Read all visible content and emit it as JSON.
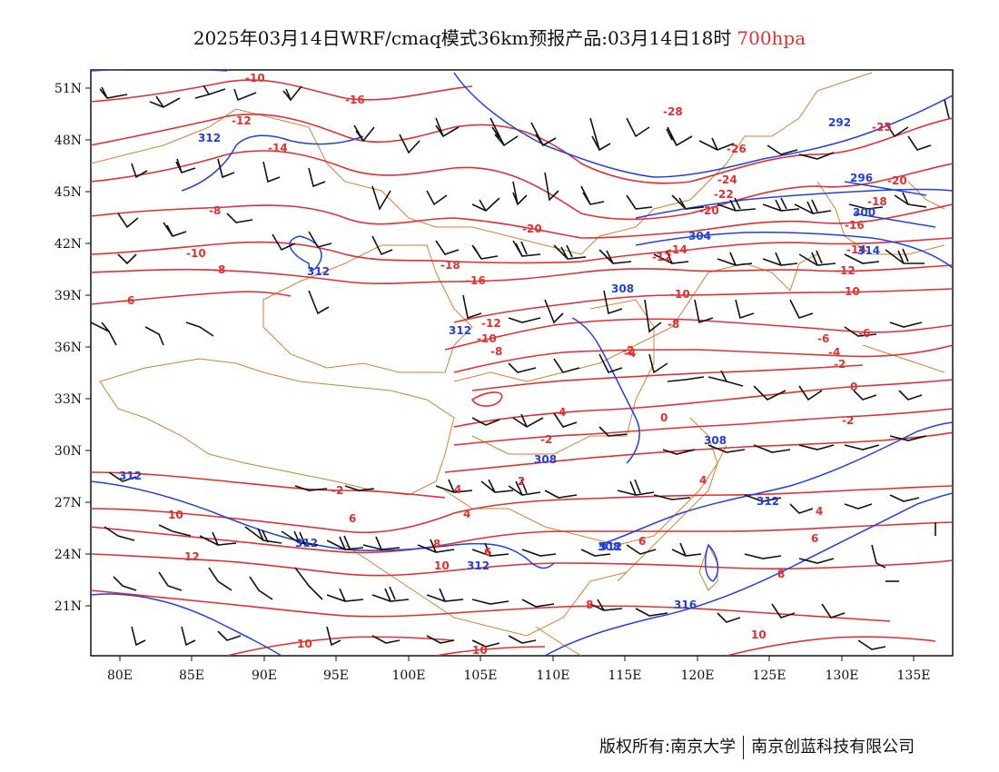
{
  "title": {
    "main": "2025年03月14日WRF/cmaq模式36km预报产品:03月14日18时",
    "level": "700hpa"
  },
  "axes": {
    "lat_labels": [
      "51N",
      "48N",
      "45N",
      "42N",
      "39N",
      "36N",
      "33N",
      "30N",
      "27N",
      "24N",
      "21N"
    ],
    "lon_labels": [
      "80E",
      "85E",
      "90E",
      "95E",
      "100E",
      "105E",
      "110E",
      "115E",
      "120E",
      "125E",
      "130E",
      "135E"
    ]
  },
  "temperature_labels": [
    "-10",
    "-12",
    "-16",
    "-14",
    "-8",
    "-10",
    "-8",
    "-6",
    "-20",
    "-18",
    "-16",
    "-12",
    "-10",
    "-8",
    "-28",
    "-26",
    "-25",
    "-24",
    "-22",
    "-20",
    "-20",
    "-18",
    "-16",
    "-14",
    "-12",
    "-10",
    "-14",
    "-12",
    "-10",
    "-8",
    "-6",
    "-6",
    "-4",
    "-2",
    "0",
    "-4",
    "-2",
    "0",
    "-2",
    "-2",
    "-4",
    "-2",
    "4",
    "2",
    "4",
    "6",
    "6",
    "8",
    "10",
    "12",
    "10",
    "10",
    "8",
    "6",
    "4",
    "4",
    "6",
    "8",
    "10"
  ],
  "height_labels": [
    "312",
    "312",
    "312",
    "292",
    "296",
    "300",
    "304",
    "308",
    "308",
    "308",
    "308",
    "312",
    "312",
    "312",
    "312",
    "312",
    "316",
    "304",
    "314"
  ],
  "colors": {
    "temperature": "#e03030",
    "height": "#2040e0",
    "border": "#d08030",
    "barb": "#111111"
  },
  "footer": {
    "left": "版权所有:南京大学",
    "right": "南京创蓝科技有限公司"
  }
}
